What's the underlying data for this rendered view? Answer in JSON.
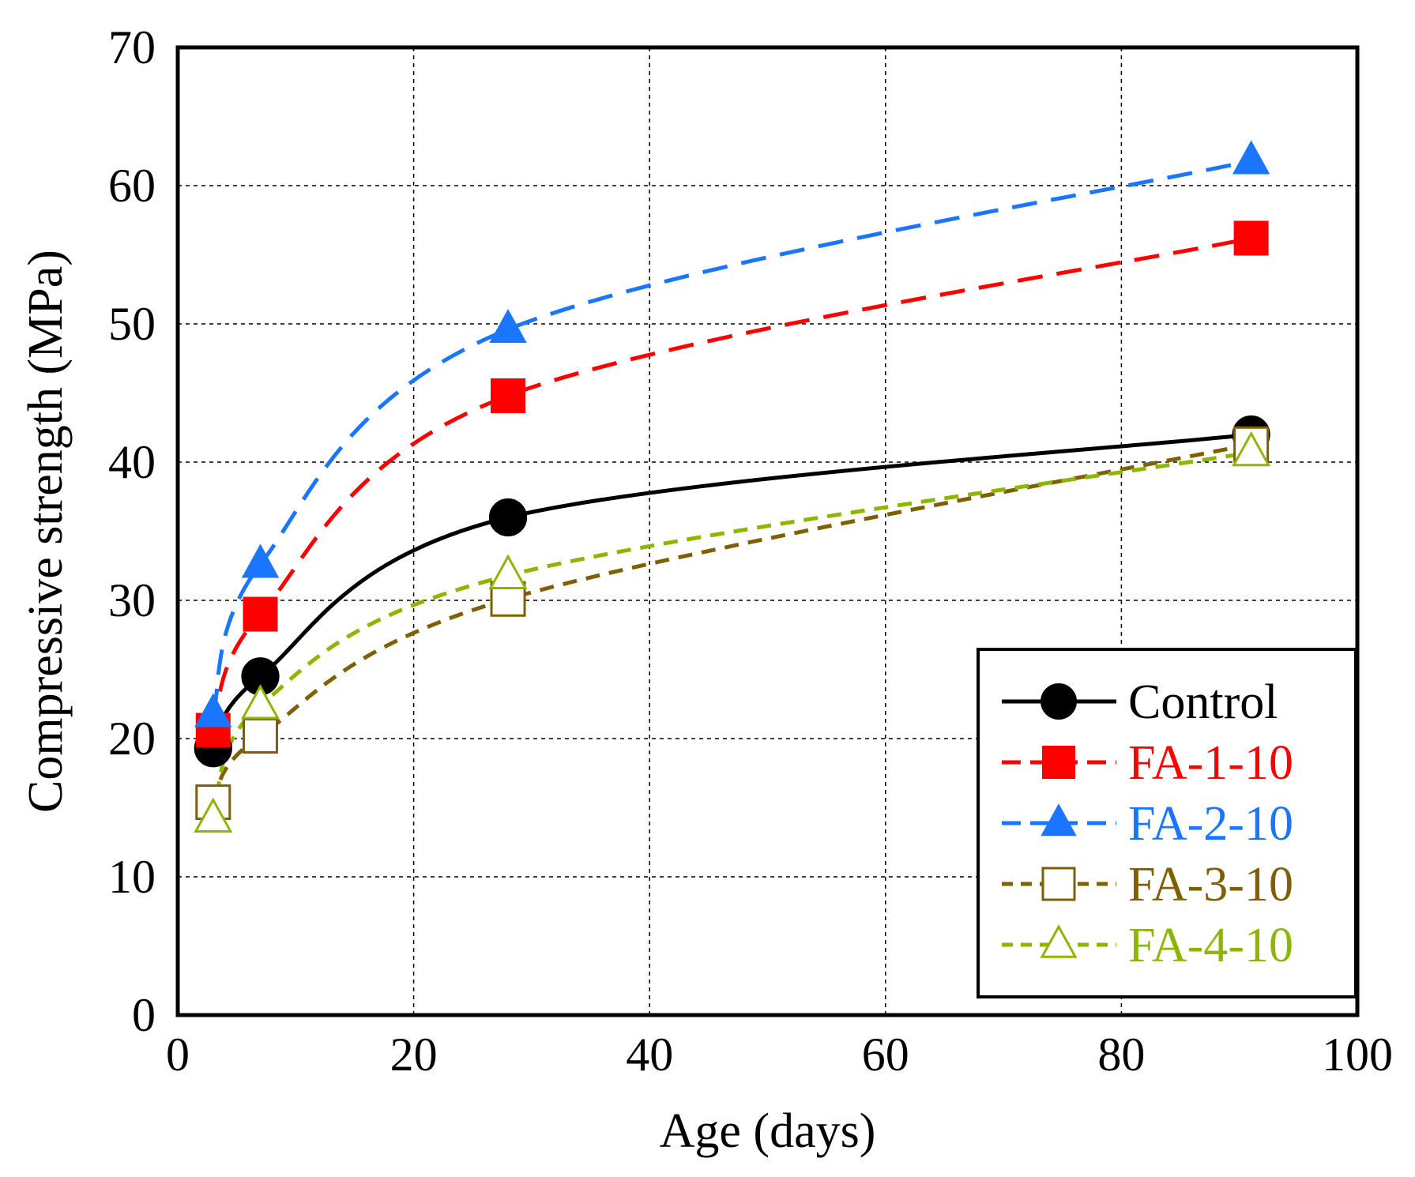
{
  "chart_data": {
    "type": "line",
    "title": "",
    "xlabel": "Age (days)",
    "ylabel": "Compressive strength (MPa)",
    "xlim": [
      0,
      100
    ],
    "ylim": [
      0,
      70
    ],
    "x_ticks": [
      0,
      20,
      40,
      60,
      80,
      100
    ],
    "y_ticks": [
      0,
      10,
      20,
      30,
      40,
      50,
      60,
      70
    ],
    "grid": true,
    "legend_position": "bottom-right",
    "x": [
      3,
      7,
      28,
      91
    ],
    "series": [
      {
        "name": "Control",
        "values": [
          19.3,
          24.5,
          36.0,
          42.0
        ],
        "color": "#000000",
        "marker": "circle",
        "marker_fill": "filled",
        "line": "solid"
      },
      {
        "name": "FA-1-10",
        "values": [
          20.6,
          29.0,
          44.8,
          56.2
        ],
        "color": "#ff0000",
        "marker": "square",
        "marker_fill": "filled",
        "line": "dashed"
      },
      {
        "name": "FA-2-10",
        "values": [
          21.8,
          32.6,
          49.6,
          61.8
        ],
        "color": "#1a75ff",
        "marker": "triangle",
        "marker_fill": "filled",
        "line": "dashed"
      },
      {
        "name": "FA-3-10",
        "values": [
          15.4,
          20.2,
          30.1,
          41.3
        ],
        "color": "#7f6000",
        "marker": "square",
        "marker_fill": "open",
        "line": "short-dashed"
      },
      {
        "name": "FA-4-10",
        "values": [
          14.2,
          22.4,
          31.8,
          40.7
        ],
        "color": "#8db600",
        "marker": "triangle",
        "marker_fill": "open",
        "line": "short-dashed"
      }
    ]
  }
}
